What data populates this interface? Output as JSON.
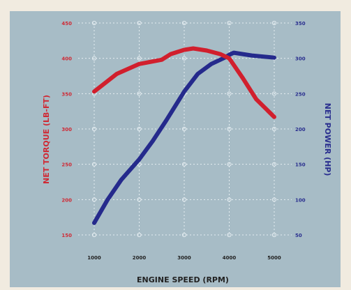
{
  "colors": {
    "background": "#f1ebe0",
    "panel": "#a7bcc6",
    "torque": "#d11f2d",
    "power": "#252a8c",
    "torque_label": "#cf2a35",
    "power_label": "#2a2f8f",
    "axis_text": "#222222",
    "grid": "#e6eef2"
  },
  "chart_data": {
    "type": "line",
    "title": "",
    "xlabel": "ENGINE SPEED (RPM)",
    "ylabel_left": "NET TORQUE (LB-FT)",
    "ylabel_right": "NET POWER (HP)",
    "x_ticks": [
      1000,
      2000,
      3000,
      4000,
      5000
    ],
    "y_left_ticks": [
      150,
      200,
      250,
      300,
      350,
      400,
      450
    ],
    "y_right_ticks": [
      50,
      100,
      150,
      200,
      250,
      300,
      350
    ],
    "xlim": [
      1000,
      5000
    ],
    "ylim_left": [
      150,
      450
    ],
    "ylim_right": [
      50,
      350
    ],
    "grid": true,
    "legend": "none",
    "series": [
      {
        "name": "NET TORQUE (LB-FT)",
        "axis": "left",
        "color_key": "torque",
        "x": [
          1000,
          1500,
          2000,
          2500,
          2700,
          3000,
          3200,
          3500,
          3800,
          4000,
          4300,
          4600,
          5000
        ],
        "y": [
          353,
          378,
          392,
          398,
          406,
          412,
          414,
          411,
          406,
          400,
          372,
          342,
          317
        ]
      },
      {
        "name": "NET POWER (HP)",
        "axis": "right",
        "color_key": "power",
        "x": [
          1000,
          1300,
          1600,
          2000,
          2300,
          2600,
          3000,
          3300,
          3600,
          3900,
          4000,
          4100,
          4500,
          5000
        ],
        "y": [
          67,
          100,
          128,
          157,
          183,
          212,
          253,
          278,
          292,
          301,
          305,
          308,
          304,
          301
        ]
      }
    ]
  }
}
